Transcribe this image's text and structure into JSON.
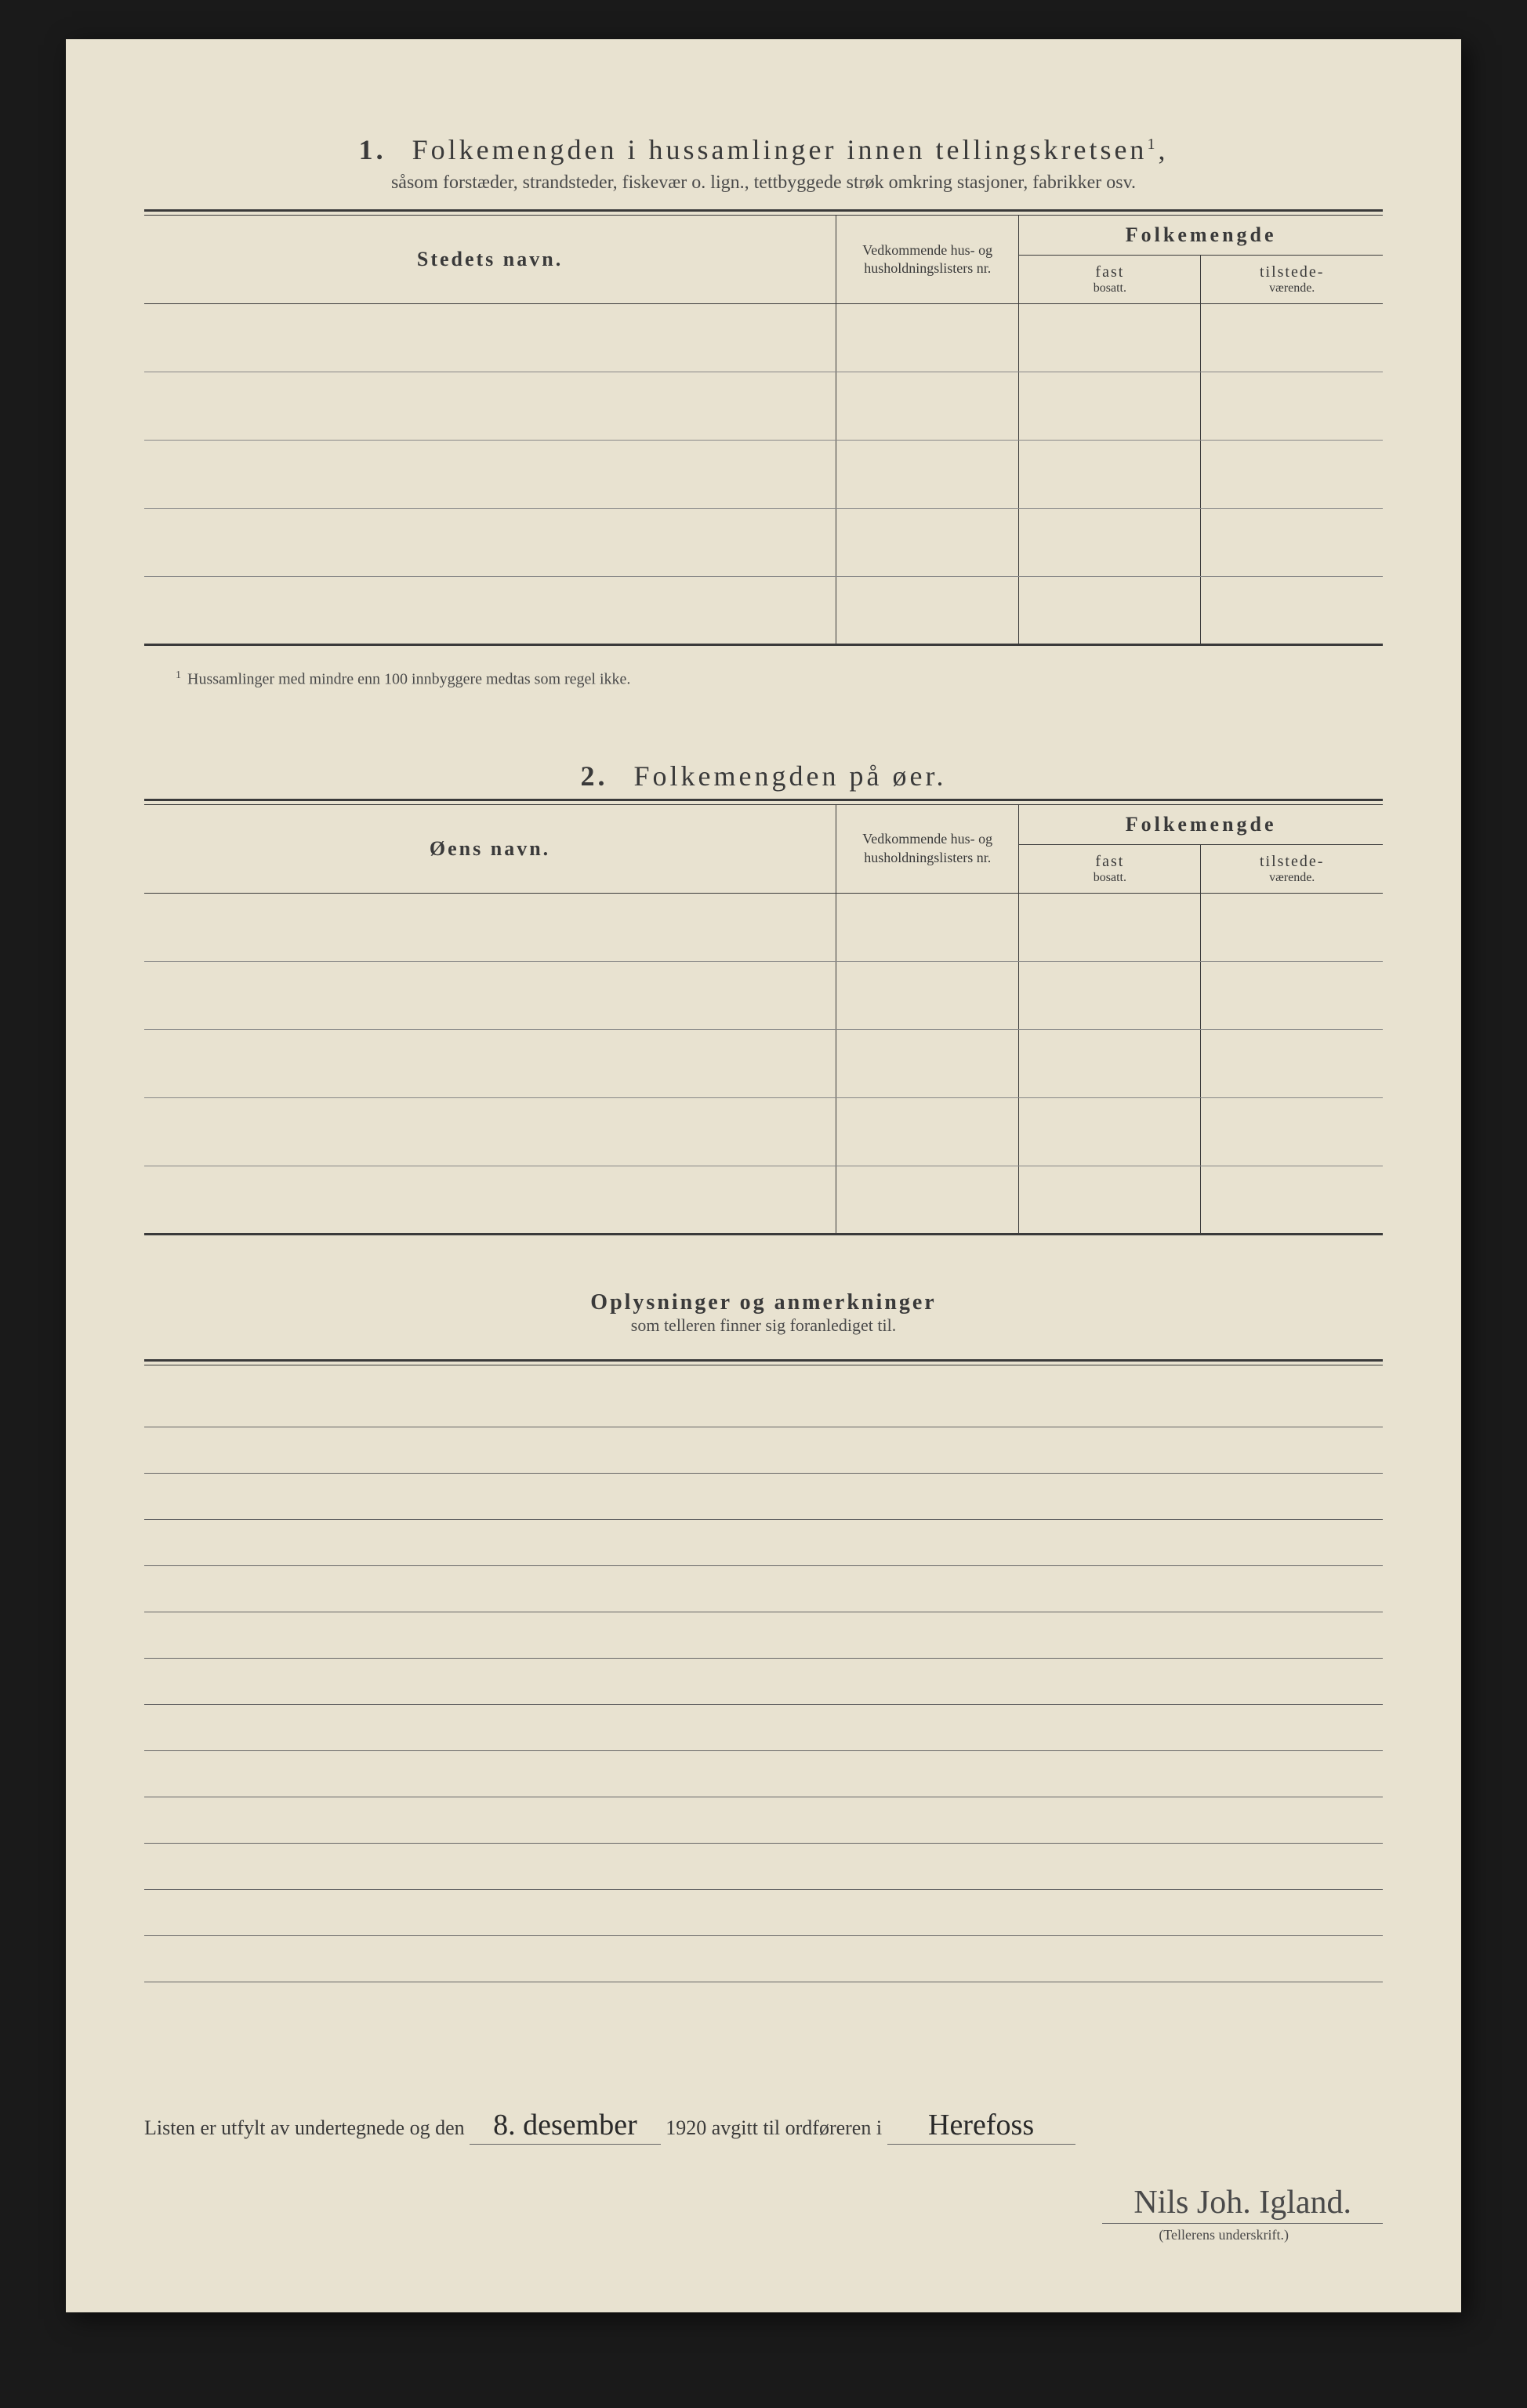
{
  "section1": {
    "number": "1.",
    "title": "Folkemengden i hussamlinger innen tellingskretsen",
    "title_sup": "1",
    "subtitle": "såsom forstæder, strandsteder, fiskevær o. lign., tettbyggede strøk omkring stasjoner, fabrikker osv.",
    "col_name": "Stedets navn.",
    "col_list": "Vedkommende hus- og husholdningslisters nr.",
    "col_folke": "Folkemengde",
    "col_fast": "fast",
    "col_fast_sub": "bosatt.",
    "col_tilst": "tilstede-",
    "col_tilst_sub": "værende.",
    "row_count": 5,
    "footnote": "Hussamlinger med mindre enn 100 innbyggere medtas som regel ikke."
  },
  "section2": {
    "number": "2.",
    "title": "Folkemengden på øer.",
    "col_name": "Øens navn.",
    "col_list": "Vedkommende hus- og husholdningslisters nr.",
    "col_folke": "Folkemengde",
    "col_fast": "fast",
    "col_fast_sub": "bosatt.",
    "col_tilst": "tilstede-",
    "col_tilst_sub": "værende.",
    "row_count": 5
  },
  "notes": {
    "title": "Oplysninger og anmerkninger",
    "subtitle": "som telleren finner sig foranlediget til.",
    "line_count": 13
  },
  "signature": {
    "prefix": "Listen er utfylt av undertegnede og den",
    "date_handwritten": "8. desember",
    "year": "1920",
    "mid": "avgitt til ordføreren i",
    "place_handwritten": "Herefoss",
    "signature_handwritten": "Nils Joh. Igland.",
    "caption": "(Tellerens underskrift.)"
  },
  "colors": {
    "paper": "#e8e2d0",
    "ink": "#3a3a3a",
    "rule": "#666666",
    "background": "#1a1a1a"
  }
}
